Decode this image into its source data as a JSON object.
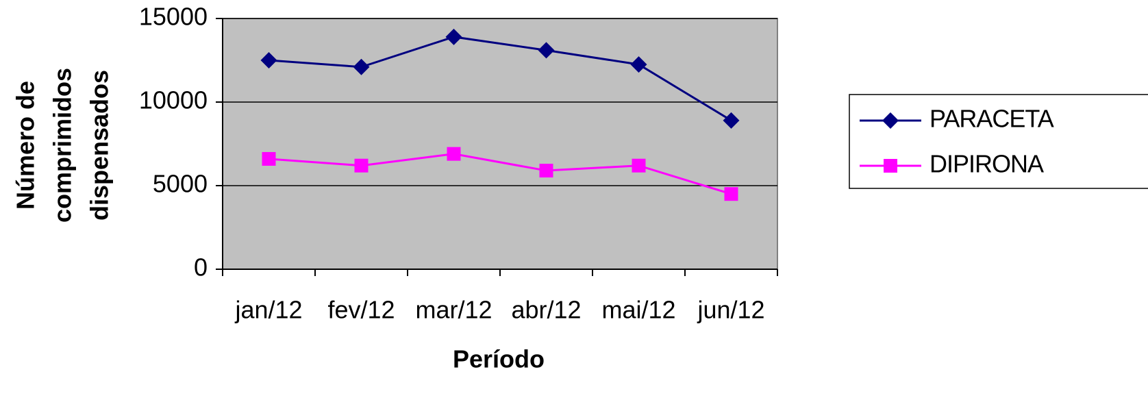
{
  "chart_data": {
    "type": "line",
    "x_label": "Período",
    "y_label": [
      "Número de",
      "comprimidos",
      "dispensados"
    ],
    "categories": [
      "jan/12",
      "fev/12",
      "mar/12",
      "abr/12",
      "mai/12",
      "jun/12"
    ],
    "series": [
      {
        "name": "PARACETA",
        "color": "#000080",
        "marker": "diamond",
        "values": [
          12500,
          12100,
          13900,
          13100,
          12250,
          8900
        ]
      },
      {
        "name": "DIPIRONA",
        "color": "#ff00ff",
        "marker": "square",
        "values": [
          6600,
          6200,
          6900,
          5900,
          6200,
          4500
        ]
      }
    ],
    "ylim": [
      0,
      15000
    ],
    "yticks": [
      0,
      5000,
      10000,
      15000
    ],
    "grid": true,
    "plot_background": "#c0c0c0",
    "legend": "right"
  }
}
